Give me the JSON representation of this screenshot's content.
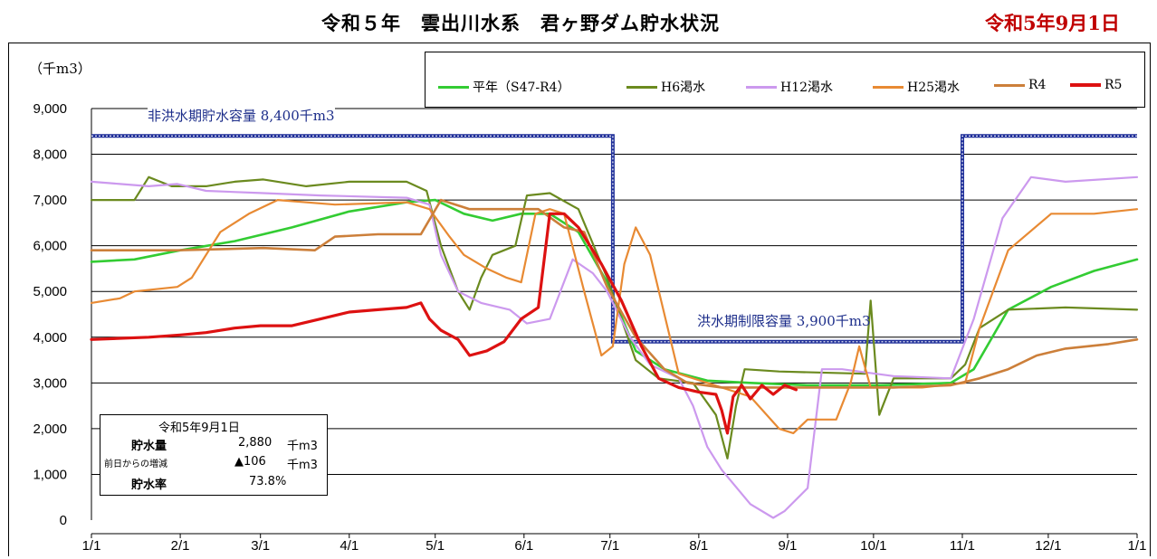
{
  "header": {
    "title": "令和５年　雲出川水系　君ヶ野ダム貯水状況",
    "date": "令和5年9月1日"
  },
  "annotations": {
    "nonflood_label": "非洪水期貯水容量",
    "nonflood_value": "8,400千m3",
    "flood_label": "洪水期制限容量",
    "flood_value": "3,900千m3"
  },
  "info_box": {
    "date": "令和5年9月1日",
    "storage_label": "貯水量",
    "storage_value": "2,880",
    "storage_unit": "千m3",
    "change_label": "前日からの増減",
    "change_value": "▲106",
    "change_unit": "千m3",
    "rate_label": "貯水率",
    "rate_value": "73.8%"
  },
  "chart_data": {
    "type": "line",
    "title": "令和５年　雲出川水系　君ヶ野ダム貯水状況",
    "ylabel": "（千m3）",
    "ylim": [
      0,
      9000
    ],
    "yticks": [
      "9,000",
      "8,000",
      "7,000",
      "6,000",
      "5,000",
      "4,000",
      "3,000",
      "2,000",
      "1,000",
      "0"
    ],
    "xticks": [
      "1/1",
      "2/1",
      "3/1",
      "4/1",
      "5/1",
      "6/1",
      "7/1",
      "8/1",
      "9/1",
      "10/1",
      "11/1",
      "12/1",
      "1/1"
    ],
    "x_unit": "day of year",
    "legend_position": "top-right",
    "grid": true,
    "capacity_line": {
      "color": "#1f2f99",
      "points": [
        [
          0,
          8400
        ],
        [
          182,
          8400
        ],
        [
          182,
          3900
        ],
        [
          304,
          3900
        ],
        [
          304,
          8400
        ],
        [
          365,
          8400
        ]
      ]
    },
    "series": [
      {
        "name": "平年（S47-R4）",
        "color": "#33cc33",
        "width": 2.6,
        "points": [
          [
            0,
            5650
          ],
          [
            15,
            5700
          ],
          [
            31,
            5900
          ],
          [
            50,
            6100
          ],
          [
            70,
            6400
          ],
          [
            90,
            6750
          ],
          [
            110,
            6950
          ],
          [
            120,
            7000
          ],
          [
            130,
            6700
          ],
          [
            140,
            6550
          ],
          [
            150,
            6700
          ],
          [
            160,
            6700
          ],
          [
            170,
            6300
          ],
          [
            180,
            5200
          ],
          [
            190,
            3700
          ],
          [
            200,
            3300
          ],
          [
            215,
            3050
          ],
          [
            230,
            3000
          ],
          [
            250,
            2950
          ],
          [
            275,
            2950
          ],
          [
            300,
            3000
          ],
          [
            308,
            3300
          ],
          [
            320,
            4600
          ],
          [
            335,
            5100
          ],
          [
            350,
            5450
          ],
          [
            365,
            5700
          ]
        ]
      },
      {
        "name": "H6渇水",
        "color": "#6b8a1f",
        "width": 2.2,
        "points": [
          [
            0,
            7000
          ],
          [
            15,
            7000
          ],
          [
            20,
            7500
          ],
          [
            28,
            7300
          ],
          [
            40,
            7300
          ],
          [
            50,
            7400
          ],
          [
            60,
            7450
          ],
          [
            75,
            7300
          ],
          [
            90,
            7400
          ],
          [
            110,
            7400
          ],
          [
            117,
            7200
          ],
          [
            122,
            6000
          ],
          [
            128,
            5000
          ],
          [
            132,
            4600
          ],
          [
            136,
            5300
          ],
          [
            140,
            5800
          ],
          [
            148,
            6000
          ],
          [
            152,
            7100
          ],
          [
            160,
            7150
          ],
          [
            170,
            6800
          ],
          [
            180,
            5300
          ],
          [
            190,
            3500
          ],
          [
            198,
            3100
          ],
          [
            210,
            3000
          ],
          [
            218,
            2300
          ],
          [
            222,
            1350
          ],
          [
            225,
            2500
          ],
          [
            228,
            3300
          ],
          [
            240,
            3250
          ],
          [
            270,
            3200
          ],
          [
            272,
            4800
          ],
          [
            275,
            2300
          ],
          [
            280,
            3100
          ],
          [
            300,
            3100
          ],
          [
            305,
            3400
          ],
          [
            310,
            4200
          ],
          [
            320,
            4600
          ],
          [
            340,
            4650
          ],
          [
            365,
            4600
          ]
        ]
      },
      {
        "name": "H12渇水",
        "color": "#cc99ee",
        "width": 2.2,
        "points": [
          [
            0,
            7400
          ],
          [
            10,
            7350
          ],
          [
            20,
            7300
          ],
          [
            30,
            7350
          ],
          [
            40,
            7200
          ],
          [
            60,
            7150
          ],
          [
            80,
            7100
          ],
          [
            110,
            7050
          ],
          [
            118,
            6900
          ],
          [
            122,
            5800
          ],
          [
            128,
            5000
          ],
          [
            136,
            4750
          ],
          [
            146,
            4600
          ],
          [
            152,
            4300
          ],
          [
            160,
            4400
          ],
          [
            168,
            5700
          ],
          [
            175,
            5400
          ],
          [
            180,
            5000
          ],
          [
            188,
            4000
          ],
          [
            195,
            3400
          ],
          [
            205,
            3100
          ],
          [
            210,
            2500
          ],
          [
            215,
            1600
          ],
          [
            220,
            1100
          ],
          [
            230,
            350
          ],
          [
            238,
            50
          ],
          [
            242,
            200
          ],
          [
            250,
            700
          ],
          [
            255,
            3300
          ],
          [
            262,
            3300
          ],
          [
            280,
            3150
          ],
          [
            300,
            3100
          ],
          [
            308,
            4400
          ],
          [
            318,
            6600
          ],
          [
            328,
            7500
          ],
          [
            340,
            7400
          ],
          [
            365,
            7500
          ]
        ]
      },
      {
        "name": "H25渇水",
        "color": "#e88a33",
        "width": 2.2,
        "points": [
          [
            0,
            4750
          ],
          [
            10,
            4850
          ],
          [
            15,
            5000
          ],
          [
            30,
            5100
          ],
          [
            35,
            5300
          ],
          [
            45,
            6300
          ],
          [
            55,
            6700
          ],
          [
            65,
            7000
          ],
          [
            85,
            6900
          ],
          [
            110,
            6950
          ],
          [
            118,
            6800
          ],
          [
            125,
            6200
          ],
          [
            130,
            5800
          ],
          [
            138,
            5500
          ],
          [
            145,
            5300
          ],
          [
            150,
            5200
          ],
          [
            155,
            6700
          ],
          [
            160,
            6800
          ],
          [
            165,
            6700
          ],
          [
            172,
            5000
          ],
          [
            178,
            3600
          ],
          [
            182,
            3800
          ],
          [
            186,
            5600
          ],
          [
            190,
            6400
          ],
          [
            195,
            5800
          ],
          [
            200,
            4500
          ],
          [
            205,
            3200
          ],
          [
            215,
            3000
          ],
          [
            230,
            2700
          ],
          [
            240,
            2000
          ],
          [
            245,
            1900
          ],
          [
            250,
            2200
          ],
          [
            260,
            2200
          ],
          [
            265,
            3000
          ],
          [
            268,
            3800
          ],
          [
            272,
            2900
          ],
          [
            290,
            2900
          ],
          [
            305,
            3000
          ],
          [
            310,
            4200
          ],
          [
            320,
            5900
          ],
          [
            335,
            6700
          ],
          [
            350,
            6700
          ],
          [
            365,
            6800
          ]
        ]
      },
      {
        "name": "R4",
        "color": "#cc7f3a",
        "width": 2.6,
        "points": [
          [
            0,
            5900
          ],
          [
            30,
            5900
          ],
          [
            60,
            5950
          ],
          [
            78,
            5900
          ],
          [
            85,
            6200
          ],
          [
            100,
            6250
          ],
          [
            115,
            6250
          ],
          [
            122,
            7000
          ],
          [
            132,
            6800
          ],
          [
            140,
            6800
          ],
          [
            150,
            6800
          ],
          [
            156,
            6800
          ],
          [
            165,
            6400
          ],
          [
            172,
            6300
          ],
          [
            180,
            5100
          ],
          [
            190,
            4000
          ],
          [
            200,
            3300
          ],
          [
            208,
            3000
          ],
          [
            220,
            2900
          ],
          [
            240,
            2900
          ],
          [
            260,
            2900
          ],
          [
            280,
            2900
          ],
          [
            300,
            2950
          ],
          [
            310,
            3100
          ],
          [
            320,
            3300
          ],
          [
            330,
            3600
          ],
          [
            340,
            3750
          ],
          [
            355,
            3850
          ],
          [
            365,
            3950
          ]
        ]
      },
      {
        "name": "R5",
        "color": "#dd1111",
        "width": 3.2,
        "points": [
          [
            0,
            3950
          ],
          [
            20,
            4000
          ],
          [
            31,
            4050
          ],
          [
            40,
            4100
          ],
          [
            50,
            4200
          ],
          [
            59,
            4250
          ],
          [
            70,
            4250
          ],
          [
            80,
            4400
          ],
          [
            90,
            4550
          ],
          [
            100,
            4600
          ],
          [
            110,
            4650
          ],
          [
            115,
            4750
          ],
          [
            118,
            4400
          ],
          [
            122,
            4150
          ],
          [
            128,
            3950
          ],
          [
            132,
            3600
          ],
          [
            138,
            3700
          ],
          [
            144,
            3900
          ],
          [
            150,
            4400
          ],
          [
            156,
            4650
          ],
          [
            160,
            6700
          ],
          [
            165,
            6700
          ],
          [
            170,
            6400
          ],
          [
            178,
            5600
          ],
          [
            185,
            4800
          ],
          [
            192,
            3800
          ],
          [
            198,
            3100
          ],
          [
            205,
            2900
          ],
          [
            212,
            2800
          ],
          [
            218,
            2750
          ],
          [
            220,
            2400
          ],
          [
            222,
            1900
          ],
          [
            224,
            2700
          ],
          [
            227,
            2950
          ],
          [
            230,
            2650
          ],
          [
            234,
            2950
          ],
          [
            238,
            2750
          ],
          [
            242,
            2950
          ],
          [
            246,
            2850
          ]
        ]
      }
    ]
  }
}
